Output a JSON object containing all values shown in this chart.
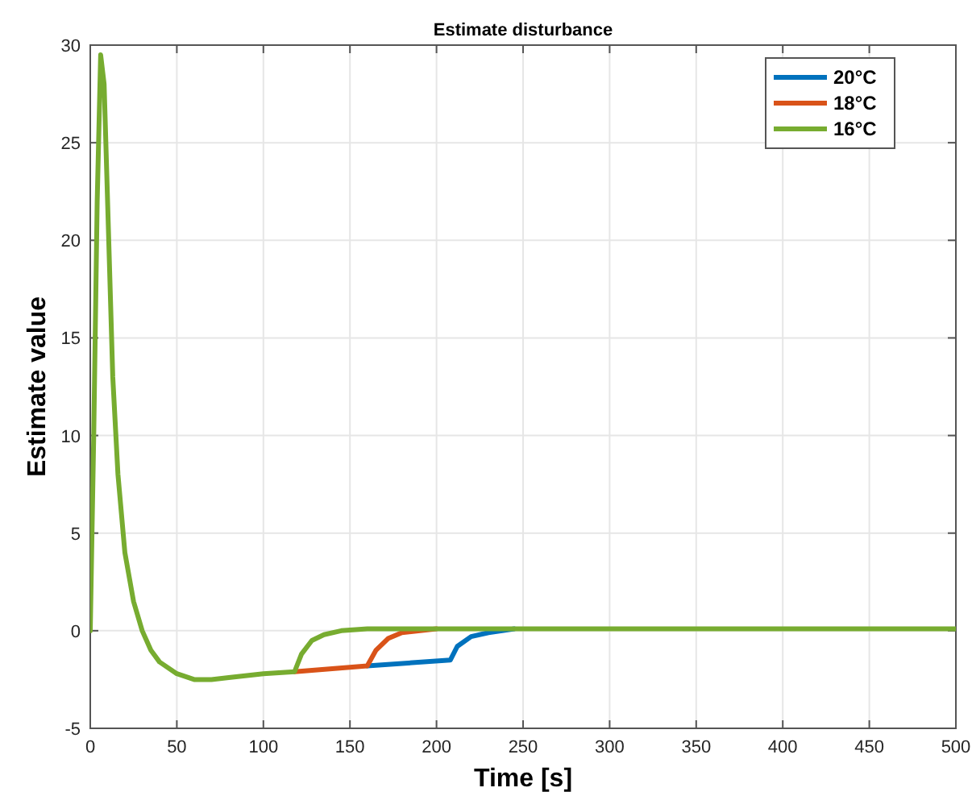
{
  "chart_data": {
    "type": "line",
    "title": "Estimate disturbance",
    "xlabel": "Time [s]",
    "ylabel": "Estimate value",
    "xlim": [
      0,
      500
    ],
    "ylim": [
      -5,
      30
    ],
    "xticks": [
      0,
      50,
      100,
      150,
      200,
      250,
      300,
      350,
      400,
      450,
      500
    ],
    "yticks": [
      -5,
      0,
      5,
      10,
      15,
      20,
      25,
      30
    ],
    "grid": true,
    "legend": "top right",
    "line_style": "solid",
    "series": [
      {
        "name": "20°C",
        "color": "#0072bd",
        "x": [
          160,
          208,
          212,
          220,
          230,
          245
        ],
        "values": [
          -1.8,
          -1.5,
          -0.8,
          -0.3,
          -0.1,
          0.1
        ]
      },
      {
        "name": "18°C",
        "color": "#d95319",
        "x": [
          118,
          160,
          165,
          172,
          180,
          200
        ],
        "values": [
          -2.1,
          -1.8,
          -1.0,
          -0.4,
          -0.1,
          0.1
        ]
      },
      {
        "name": "16°C",
        "color": "#77ac30",
        "x": [
          0,
          2,
          4,
          6,
          8,
          10,
          13,
          16,
          20,
          25,
          30,
          35,
          40,
          50,
          60,
          70,
          80,
          100,
          118,
          122,
          128,
          135,
          145,
          160,
          500
        ],
        "values": [
          0,
          10,
          22,
          29.5,
          28,
          22,
          13,
          8,
          4,
          1.5,
          0,
          -1,
          -1.6,
          -2.2,
          -2.5,
          -2.5,
          -2.4,
          -2.2,
          -2.1,
          -1.2,
          -0.5,
          -0.2,
          0,
          0.1,
          0.1
        ]
      }
    ]
  }
}
